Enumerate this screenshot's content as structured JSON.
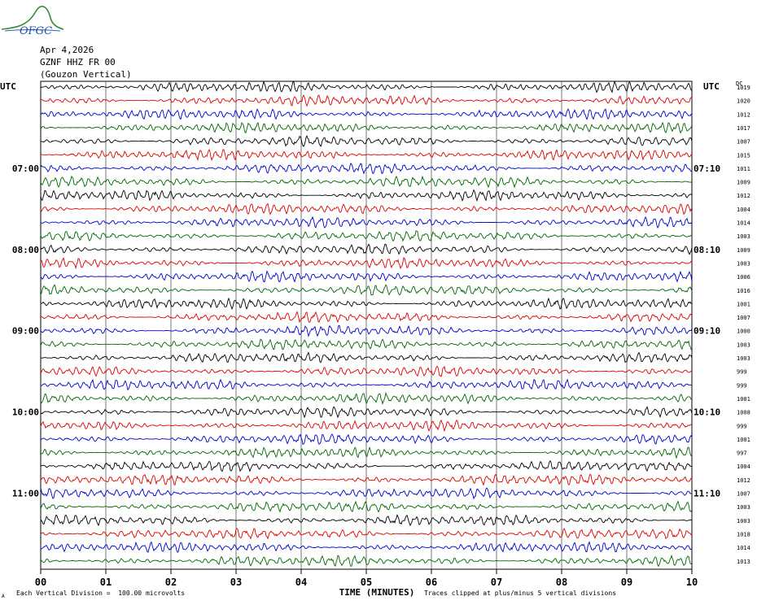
{
  "logo_text": "OFGC",
  "header": {
    "date": "Apr 4,2026",
    "station": "GZNF HHZ FR 00",
    "location": "(Gouzon Vertical)"
  },
  "left_axis_label": "UTC",
  "right_axis_label": "UTC",
  "dc_header": "DC",
  "chart_data": {
    "type": "line",
    "title": "",
    "xlabel": "TIME (MINUTES)",
    "x_ticks": [
      "00",
      "01",
      "02",
      "03",
      "04",
      "05",
      "06",
      "07",
      "08",
      "09",
      "10"
    ],
    "xlim": [
      0,
      10
    ],
    "trace_count": 36,
    "trace_colors": [
      "#000000",
      "#dd0000",
      "#0000cc",
      "#006600"
    ],
    "grid": true,
    "left_hour_labels": [
      {
        "row": 6,
        "label": "07:00"
      },
      {
        "row": 12,
        "label": "08:00"
      },
      {
        "row": 18,
        "label": "09:00"
      },
      {
        "row": 24,
        "label": "10:00"
      },
      {
        "row": 30,
        "label": "11:00"
      }
    ],
    "right_hour_labels": [
      {
        "row": 6,
        "label": "07:10"
      },
      {
        "row": 12,
        "label": "08:10"
      },
      {
        "row": 18,
        "label": "09:10"
      },
      {
        "row": 24,
        "label": "10:10"
      },
      {
        "row": 30,
        "label": "11:10"
      }
    ],
    "dc_offsets": [
      "1019",
      "1020",
      "1012",
      "1017",
      "1007",
      "1015",
      "1011",
      "1009",
      "1012",
      "1004",
      "1014",
      "1003",
      "1009",
      "1003",
      "1006",
      "1016",
      "1001",
      "1007",
      "1000",
      "1003",
      "1003",
      "999",
      "999",
      "1001",
      "1008",
      "999",
      "1001",
      "997",
      "1004",
      "1012",
      "1007",
      "1003",
      "1003",
      "1018",
      "1014",
      "1013"
    ]
  },
  "footer": {
    "division": "Each Vertical Division =  100.00 microvolts",
    "clip": "Traces clipped at plus/minus 5 vertical divisions",
    "corner_mark": "A"
  }
}
